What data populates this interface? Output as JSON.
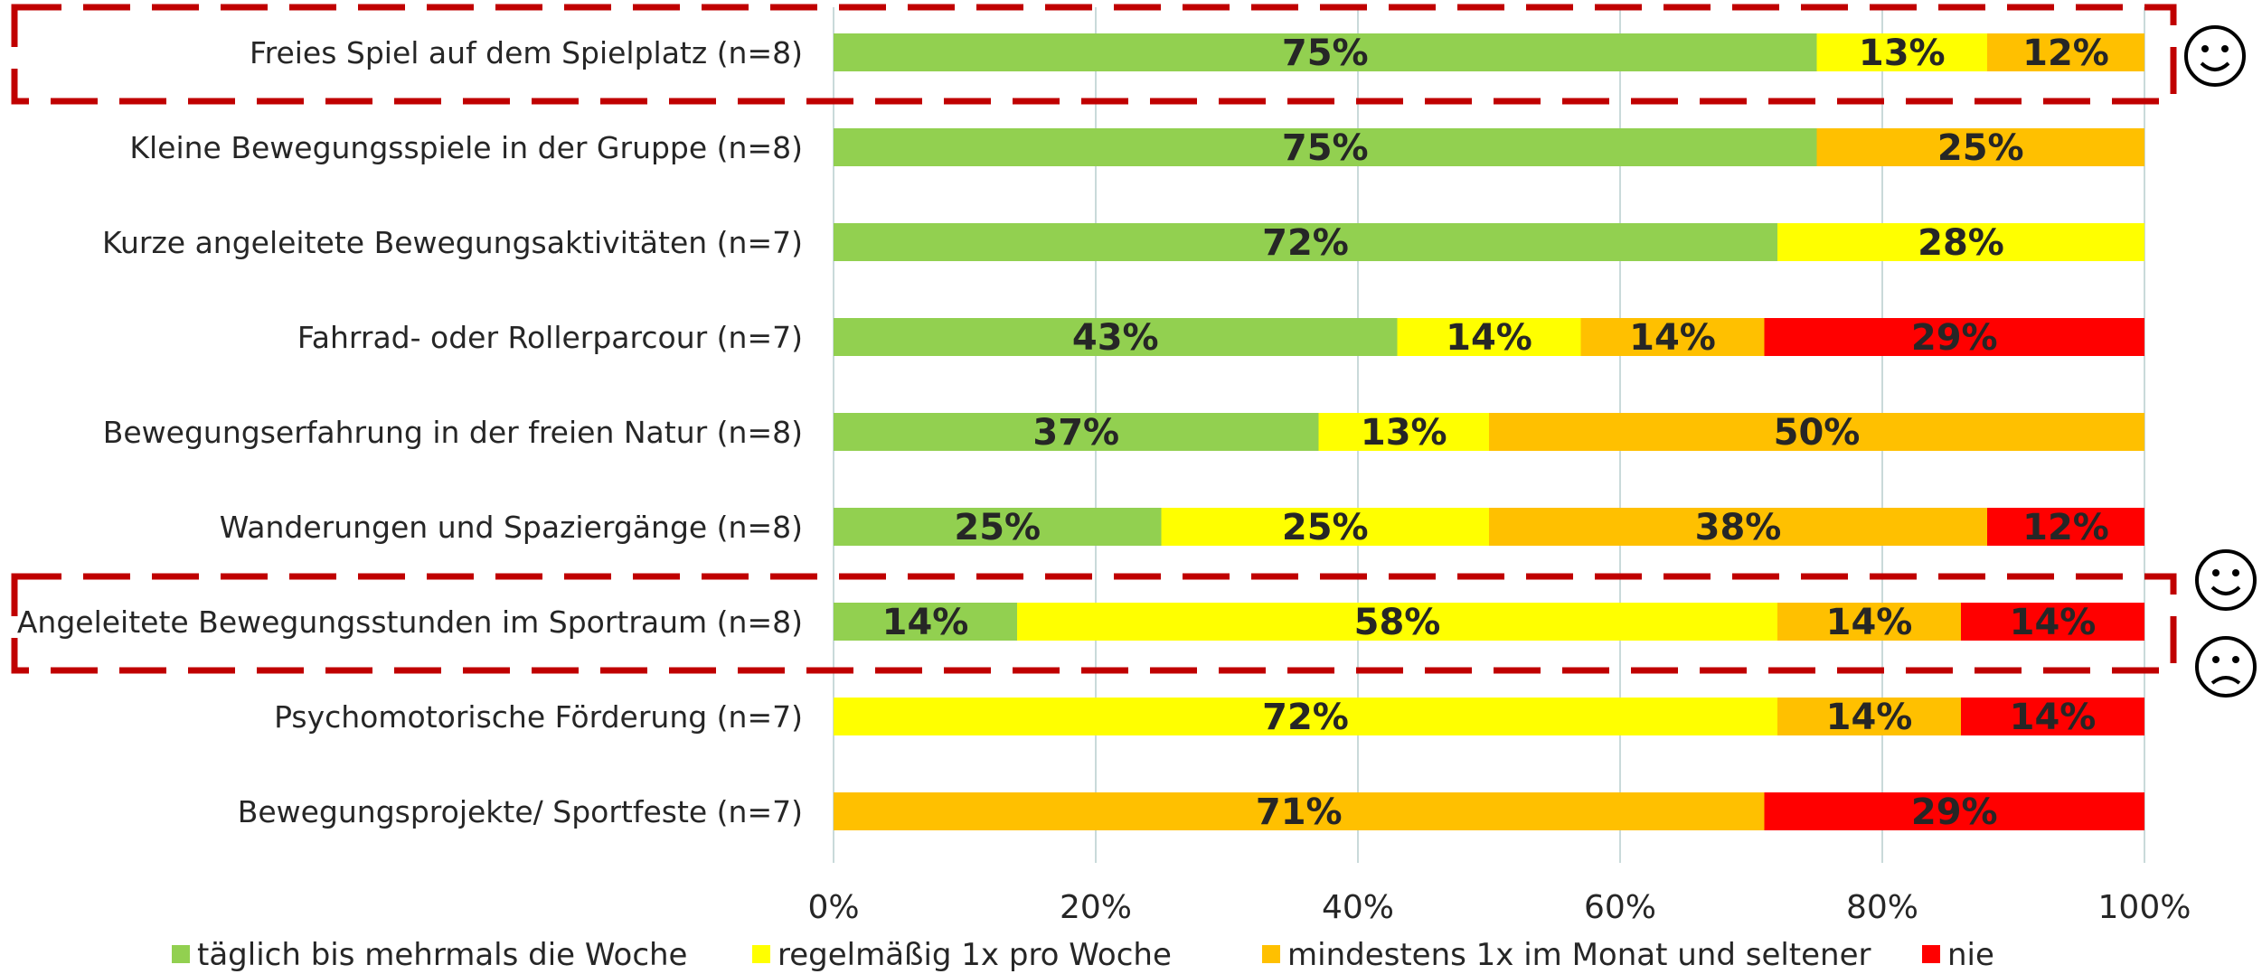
{
  "chart_data": {
    "type": "bar",
    "orientation": "horizontal",
    "stacked": true,
    "categories": [
      "Freies Spiel auf dem Spielplatz (n=8)",
      "Kleine Bewegungsspiele in der Gruppe (n=8)",
      "Kurze angeleitete Bewegungsaktivitäten (n=7)",
      "Fahrrad- oder Rollerparcour (n=7)",
      "Bewegungserfahrung in der freien Natur (n=8)",
      "Wanderungen und Spaziergänge (n=8)",
      "Angeleitete Bewegungsstunden im Sportraum (n=8)",
      "Psychomotorische Förderung (n=7)",
      "Bewegungsprojekte/ Sportfeste (n=7)"
    ],
    "series": [
      {
        "name": "täglich bis mehrmals die Woche",
        "color": "#92d050",
        "values": [
          75,
          75,
          72,
          43,
          37,
          25,
          14,
          0,
          0
        ]
      },
      {
        "name": "regelmäßig 1x pro Woche",
        "color": "#ffff00",
        "values": [
          13,
          0,
          28,
          14,
          13,
          25,
          58,
          72,
          0
        ]
      },
      {
        "name": "mindestens 1x im Monat und seltener",
        "color": "#ffc000",
        "values": [
          12,
          25,
          0,
          14,
          50,
          38,
          14,
          14,
          71
        ]
      },
      {
        "name": "nie",
        "color": "#ff0000",
        "values": [
          0,
          0,
          0,
          29,
          0,
          12,
          14,
          14,
          29
        ]
      }
    ],
    "data_labels": [
      [
        "75%",
        "13%",
        "12%",
        ""
      ],
      [
        "75%",
        "",
        "25%",
        ""
      ],
      [
        "72%",
        "28%",
        "",
        ""
      ],
      [
        "43%",
        "14%",
        "14%",
        "29%"
      ],
      [
        "37%",
        "13%",
        "50%",
        ""
      ],
      [
        "25%",
        "25%",
        "38%",
        "12%"
      ],
      [
        "14%",
        "58%",
        "14%",
        "14%"
      ],
      [
        "",
        "72%",
        "14%",
        "14%"
      ],
      [
        "",
        "",
        "71%",
        "29%"
      ]
    ],
    "x_ticks": [
      "0%",
      "20%",
      "40%",
      "60%",
      "80%",
      "100%"
    ],
    "xlim": [
      0,
      100
    ],
    "grid": true,
    "legend_position": "bottom",
    "highlight_boxes": [
      {
        "category_index": 0,
        "color": "#c00000",
        "style": "dashed",
        "faces": [
          "happy-face-icon"
        ]
      },
      {
        "category_index": 6,
        "color": "#c00000",
        "style": "dashed",
        "faces": [
          "happy-face-icon",
          "sad-face-icon"
        ]
      }
    ]
  }
}
